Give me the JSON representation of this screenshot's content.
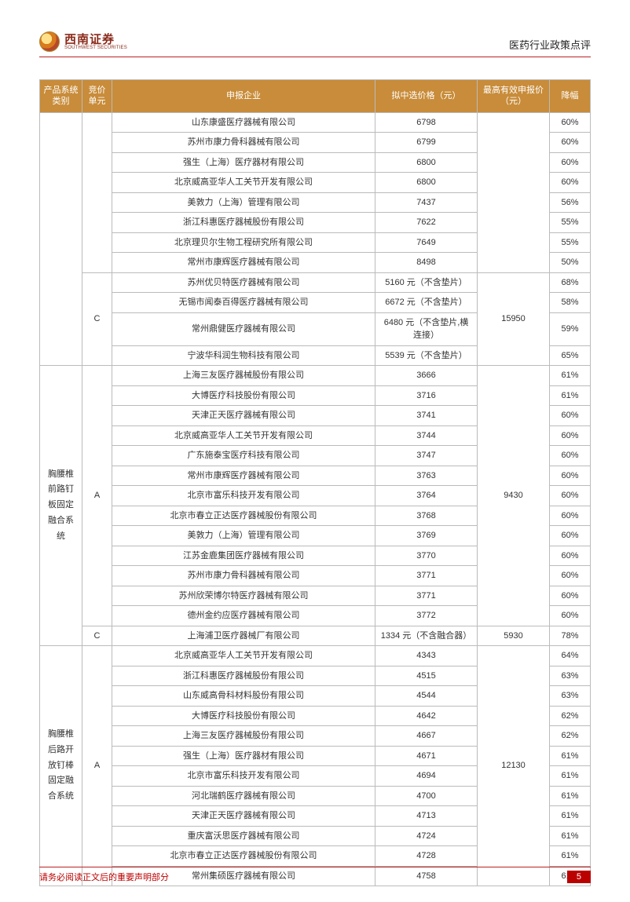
{
  "brand": {
    "cn": "西南证券",
    "en": "SOUTHWEST SECURITIES"
  },
  "doc_title": "医药行业政策点评",
  "footer_text": "请务必阅读正文后的重要声明部分",
  "page_number": "5",
  "table": {
    "headers": {
      "category": "产品系统类别",
      "unit": "竞价单元",
      "company": "申报企业",
      "price": "拟中选价格（元）",
      "max_price": "最高有效申报价（元）",
      "drop": "降幅"
    },
    "col_widths": {
      "category": 54,
      "unit": 38,
      "price": 130,
      "max": 92,
      "drop": 52
    },
    "header_bg": "#c88c3a",
    "header_fg": "#ffffff",
    "border_color": "#bbbbbb",
    "groups": [
      {
        "category": "",
        "units": [
          {
            "unit": "",
            "max_price": "",
            "rows": [
              {
                "company": "山东康盛医疗器械有限公司",
                "price": "6798",
                "drop": "60%"
              },
              {
                "company": "苏州市康力骨科器械有限公司",
                "price": "6799",
                "drop": "60%"
              },
              {
                "company": "强生（上海）医疗器材有限公司",
                "price": "6800",
                "drop": "60%"
              },
              {
                "company": "北京威高亚华人工关节开发有限公司",
                "price": "6800",
                "drop": "60%"
              },
              {
                "company": "美敦力（上海）管理有限公司",
                "price": "7437",
                "drop": "56%"
              },
              {
                "company": "浙江科惠医疗器械股份有限公司",
                "price": "7622",
                "drop": "55%"
              },
              {
                "company": "北京理贝尔生物工程研究所有限公司",
                "price": "7649",
                "drop": "55%"
              },
              {
                "company": "常州市康辉医疗器械有限公司",
                "price": "8498",
                "drop": "50%"
              }
            ]
          },
          {
            "unit": "C",
            "max_price": "15950",
            "rows": [
              {
                "company": "苏州优贝特医疗器械有限公司",
                "price": "5160 元（不含垫片）",
                "drop": "68%"
              },
              {
                "company": "无锡市闻泰百得医疗器械有限公司",
                "price": "6672 元（不含垫片）",
                "drop": "58%"
              },
              {
                "company": "常州鼎健医疗器械有限公司",
                "price": "6480 元（不含垫片,横连接）",
                "drop": "59%"
              },
              {
                "company": "宁波华科润生物科技有限公司",
                "price": "5539 元（不含垫片）",
                "drop": "65%"
              }
            ]
          }
        ]
      },
      {
        "category": "胸腰椎前路钉板固定融合系统",
        "units": [
          {
            "unit": "A",
            "max_price": "9430",
            "rows": [
              {
                "company": "上海三友医疗器械股份有限公司",
                "price": "3666",
                "drop": "61%"
              },
              {
                "company": "大博医疗科技股份有限公司",
                "price": "3716",
                "drop": "61%"
              },
              {
                "company": "天津正天医疗器械有限公司",
                "price": "3741",
                "drop": "60%"
              },
              {
                "company": "北京威高亚华人工关节开发有限公司",
                "price": "3744",
                "drop": "60%"
              },
              {
                "company": "广东施泰宝医疗科技有限公司",
                "price": "3747",
                "drop": "60%"
              },
              {
                "company": "常州市康辉医疗器械有限公司",
                "price": "3763",
                "drop": "60%"
              },
              {
                "company": "北京市富乐科技开发有限公司",
                "price": "3764",
                "drop": "60%"
              },
              {
                "company": "北京市春立正达医疗器械股份有限公司",
                "price": "3768",
                "drop": "60%"
              },
              {
                "company": "美敦力（上海）管理有限公司",
                "price": "3769",
                "drop": "60%"
              },
              {
                "company": "江苏金鹿集团医疗器械有限公司",
                "price": "3770",
                "drop": "60%"
              },
              {
                "company": "苏州市康力骨科器械有限公司",
                "price": "3771",
                "drop": "60%"
              },
              {
                "company": "苏州欣荣博尔特医疗器械有限公司",
                "price": "3771",
                "drop": "60%"
              },
              {
                "company": "德州金约应医疗器械有限公司",
                "price": "3772",
                "drop": "60%"
              }
            ]
          },
          {
            "unit": "C",
            "max_price": "5930",
            "rows": [
              {
                "company": "上海浦卫医疗器械厂有限公司",
                "price": "1334 元（不含融合器）",
                "drop": "78%"
              }
            ]
          }
        ]
      },
      {
        "category": "胸腰椎后路开放钉棒固定融合系统",
        "units": [
          {
            "unit": "A",
            "max_price": "12130",
            "rows": [
              {
                "company": "北京威高亚华人工关节开发有限公司",
                "price": "4343",
                "drop": "64%"
              },
              {
                "company": "浙江科惠医疗器械股份有限公司",
                "price": "4515",
                "drop": "63%"
              },
              {
                "company": "山东威高骨科材料股份有限公司",
                "price": "4544",
                "drop": "63%"
              },
              {
                "company": "大博医疗科技股份有限公司",
                "price": "4642",
                "drop": "62%"
              },
              {
                "company": "上海三友医疗器械股份有限公司",
                "price": "4667",
                "drop": "62%"
              },
              {
                "company": "强生（上海）医疗器材有限公司",
                "price": "4671",
                "drop": "61%"
              },
              {
                "company": "北京市富乐科技开发有限公司",
                "price": "4694",
                "drop": "61%"
              },
              {
                "company": "河北瑞鹤医疗器械有限公司",
                "price": "4700",
                "drop": "61%"
              },
              {
                "company": "天津正天医疗器械有限公司",
                "price": "4713",
                "drop": "61%"
              },
              {
                "company": "重庆富沃思医疗器械有限公司",
                "price": "4724",
                "drop": "61%"
              },
              {
                "company": "北京市春立正达医疗器械股份有限公司",
                "price": "4728",
                "drop": "61%"
              },
              {
                "company": "常州集硕医疗器械有限公司",
                "price": "4758",
                "drop": "61%"
              }
            ]
          }
        ]
      }
    ]
  }
}
